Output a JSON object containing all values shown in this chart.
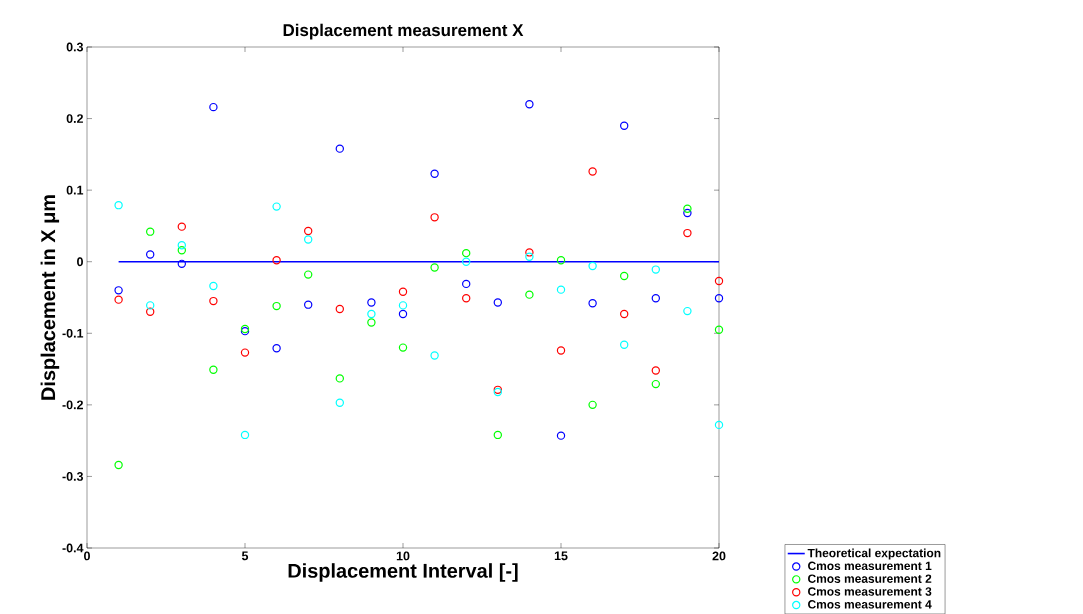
{
  "chart_data": {
    "type": "scatter",
    "title": "Displacement measurement X",
    "xlabel": "Displacement Interval [-]",
    "ylabel": "Displacement in X μm",
    "x": [
      1,
      2,
      3,
      4,
      5,
      6,
      7,
      8,
      9,
      10,
      11,
      12,
      13,
      14,
      15,
      16,
      17,
      18,
      19,
      20
    ],
    "series": [
      {
        "name": "Theoretical expectation",
        "type": "line",
        "marker": "none",
        "color": "#0000ff",
        "values": [
          0,
          0,
          0,
          0,
          0,
          0,
          0,
          0,
          0,
          0,
          0,
          0,
          0,
          0,
          0,
          0,
          0,
          0,
          0,
          0
        ]
      },
      {
        "name": "Cmos measurement 1",
        "color": "#0000ff",
        "values": [
          -0.04,
          0.01,
          -0.003,
          0.216,
          -0.097,
          -0.121,
          -0.06,
          0.158,
          -0.057,
          -0.073,
          0.123,
          -0.031,
          -0.057,
          0.22,
          -0.243,
          -0.058,
          0.19,
          -0.051,
          0.068,
          -0.051
        ]
      },
      {
        "name": "Cmos measurement 2",
        "color": "#00ff00",
        "values": [
          -0.284,
          0.042,
          0.016,
          -0.151,
          -0.094,
          -0.062,
          -0.018,
          -0.163,
          -0.085,
          -0.12,
          -0.008,
          0.012,
          -0.242,
          -0.046,
          0.002,
          -0.2,
          -0.02,
          -0.171,
          0.074,
          -0.095
        ]
      },
      {
        "name": "Cmos measurement 3",
        "color": "#ff0000",
        "values": [
          -0.053,
          -0.07,
          0.049,
          -0.055,
          -0.127,
          0.002,
          0.043,
          -0.066,
          null,
          -0.042,
          0.062,
          -0.051,
          -0.179,
          0.013,
          -0.124,
          0.126,
          -0.073,
          -0.152,
          0.04,
          -0.027
        ]
      },
      {
        "name": "Cmos measurement 4",
        "color": "#00ffff",
        "values": [
          0.079,
          -0.061,
          0.023,
          -0.034,
          -0.242,
          0.077,
          0.031,
          -0.197,
          -0.073,
          -0.061,
          -0.131,
          0.0,
          -0.182,
          0.007,
          -0.039,
          -0.006,
          -0.116,
          -0.011,
          -0.069,
          -0.228
        ]
      }
    ],
    "xlim": [
      0,
      20
    ],
    "ylim": [
      -0.4,
      0.3
    ],
    "xticks": [
      0,
      5,
      10,
      15,
      20
    ],
    "yticks": [
      -0.4,
      -0.3,
      -0.2,
      -0.1,
      0,
      0.1,
      0.2,
      0.3
    ],
    "marker": "circle",
    "grid": false,
    "legend": "bottom right"
  }
}
